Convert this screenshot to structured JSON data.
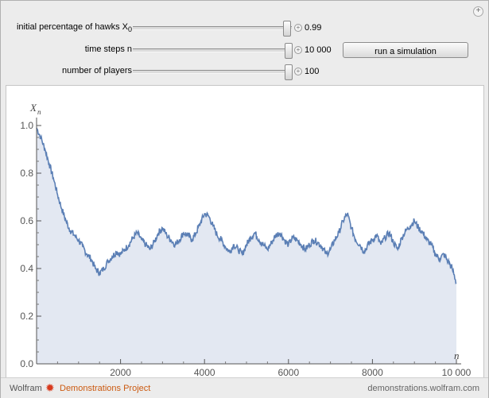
{
  "controls": {
    "initial_hawks": {
      "label": "initial percentage of hawks X",
      "sub": "0",
      "value": "0.99",
      "fraction": 0.99
    },
    "time_steps": {
      "label": "time steps n",
      "value": "10 000",
      "fraction": 1.0
    },
    "players": {
      "label": "number of players",
      "value": "100",
      "fraction": 1.0
    }
  },
  "run_button": {
    "label": "run a simulation"
  },
  "chart_data": {
    "type": "area",
    "ylabel": "X",
    "ylabel_sub": "n",
    "xlabel": "n",
    "xlim": [
      0,
      10000
    ],
    "ylim": [
      0,
      1.0
    ],
    "x_ticks": [
      {
        "value": 2000,
        "label": "2000"
      },
      {
        "value": 4000,
        "label": "4000"
      },
      {
        "value": 6000,
        "label": "6000"
      },
      {
        "value": 8000,
        "label": "8000"
      },
      {
        "value": 10000,
        "label": "10 000"
      }
    ],
    "y_ticks": [
      {
        "value": 0.0,
        "label": "0.0"
      },
      {
        "value": 0.2,
        "label": "0.2"
      },
      {
        "value": 0.4,
        "label": "0.4"
      },
      {
        "value": 0.6,
        "label": "0.6"
      },
      {
        "value": 0.8,
        "label": "0.8"
      },
      {
        "value": 1.0,
        "label": "1.0"
      }
    ],
    "line_color": "#5b7fb5",
    "fill_color": "#e3e8f2",
    "x": [
      0,
      100,
      200,
      300,
      400,
      500,
      600,
      700,
      800,
      900,
      1000,
      1100,
      1200,
      1300,
      1400,
      1500,
      1600,
      1700,
      1800,
      1900,
      2000,
      2100,
      2200,
      2300,
      2400,
      2500,
      2600,
      2700,
      2800,
      2900,
      3000,
      3100,
      3200,
      3300,
      3400,
      3500,
      3600,
      3700,
      3800,
      3900,
      4000,
      4100,
      4200,
      4300,
      4400,
      4500,
      4600,
      4700,
      4800,
      4900,
      5000,
      5100,
      5200,
      5300,
      5400,
      5500,
      5600,
      5700,
      5800,
      5900,
      6000,
      6100,
      6200,
      6300,
      6400,
      6500,
      6600,
      6700,
      6800,
      6900,
      7000,
      7100,
      7200,
      7300,
      7400,
      7500,
      7600,
      7700,
      7800,
      7900,
      8000,
      8100,
      8200,
      8300,
      8400,
      8500,
      8600,
      8700,
      8800,
      8900,
      9000,
      9100,
      9200,
      9300,
      9400,
      9500,
      9600,
      9700,
      9800,
      9900,
      10000
    ],
    "y": [
      0.99,
      0.95,
      0.9,
      0.84,
      0.78,
      0.71,
      0.65,
      0.6,
      0.56,
      0.54,
      0.52,
      0.49,
      0.46,
      0.44,
      0.4,
      0.38,
      0.4,
      0.43,
      0.45,
      0.47,
      0.46,
      0.48,
      0.5,
      0.53,
      0.55,
      0.52,
      0.5,
      0.48,
      0.51,
      0.55,
      0.57,
      0.54,
      0.52,
      0.5,
      0.52,
      0.55,
      0.54,
      0.52,
      0.55,
      0.59,
      0.63,
      0.62,
      0.58,
      0.54,
      0.52,
      0.49,
      0.47,
      0.5,
      0.48,
      0.46,
      0.5,
      0.53,
      0.55,
      0.52,
      0.5,
      0.48,
      0.51,
      0.54,
      0.55,
      0.52,
      0.5,
      0.53,
      0.52,
      0.5,
      0.48,
      0.5,
      0.52,
      0.51,
      0.49,
      0.46,
      0.48,
      0.52,
      0.55,
      0.6,
      0.63,
      0.57,
      0.52,
      0.5,
      0.47,
      0.5,
      0.52,
      0.54,
      0.5,
      0.53,
      0.55,
      0.51,
      0.48,
      0.53,
      0.56,
      0.58,
      0.6,
      0.57,
      0.55,
      0.52,
      0.5,
      0.46,
      0.44,
      0.46,
      0.43,
      0.4,
      0.34
    ]
  },
  "footer": {
    "wolfram": "Wolfram",
    "star": "✹",
    "project": "Demonstrations Project",
    "url": "demonstrations.wolfram.com"
  }
}
